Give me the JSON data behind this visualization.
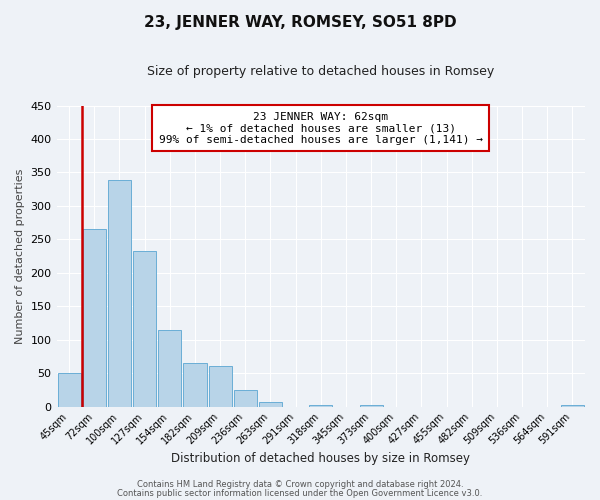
{
  "title": "23, JENNER WAY, ROMSEY, SO51 8PD",
  "subtitle": "Size of property relative to detached houses in Romsey",
  "xlabel": "Distribution of detached houses by size in Romsey",
  "ylabel": "Number of detached properties",
  "bar_labels": [
    "45sqm",
    "72sqm",
    "100sqm",
    "127sqm",
    "154sqm",
    "182sqm",
    "209sqm",
    "236sqm",
    "263sqm",
    "291sqm",
    "318sqm",
    "345sqm",
    "373sqm",
    "400sqm",
    "427sqm",
    "455sqm",
    "482sqm",
    "509sqm",
    "536sqm",
    "564sqm",
    "591sqm"
  ],
  "bar_values": [
    50,
    265,
    338,
    232,
    115,
    65,
    61,
    25,
    7,
    0,
    2,
    0,
    2,
    0,
    0,
    0,
    0,
    0,
    0,
    0,
    2
  ],
  "bar_color": "#b8d4e8",
  "bar_edge_color": "#6aaed6",
  "vline_color": "#cc0000",
  "annotation_title": "23 JENNER WAY: 62sqm",
  "annotation_line1": "← 1% of detached houses are smaller (13)",
  "annotation_line2": "99% of semi-detached houses are larger (1,141) →",
  "annotation_box_color": "#ffffff",
  "annotation_box_edge": "#cc0000",
  "ylim": [
    0,
    450
  ],
  "yticks": [
    0,
    50,
    100,
    150,
    200,
    250,
    300,
    350,
    400,
    450
  ],
  "footer1": "Contains HM Land Registry data © Crown copyright and database right 2024.",
  "footer2": "Contains public sector information licensed under the Open Government Licence v3.0.",
  "bg_color": "#eef2f7",
  "grid_color": "#ffffff",
  "vline_x_bar_index": 0.5
}
